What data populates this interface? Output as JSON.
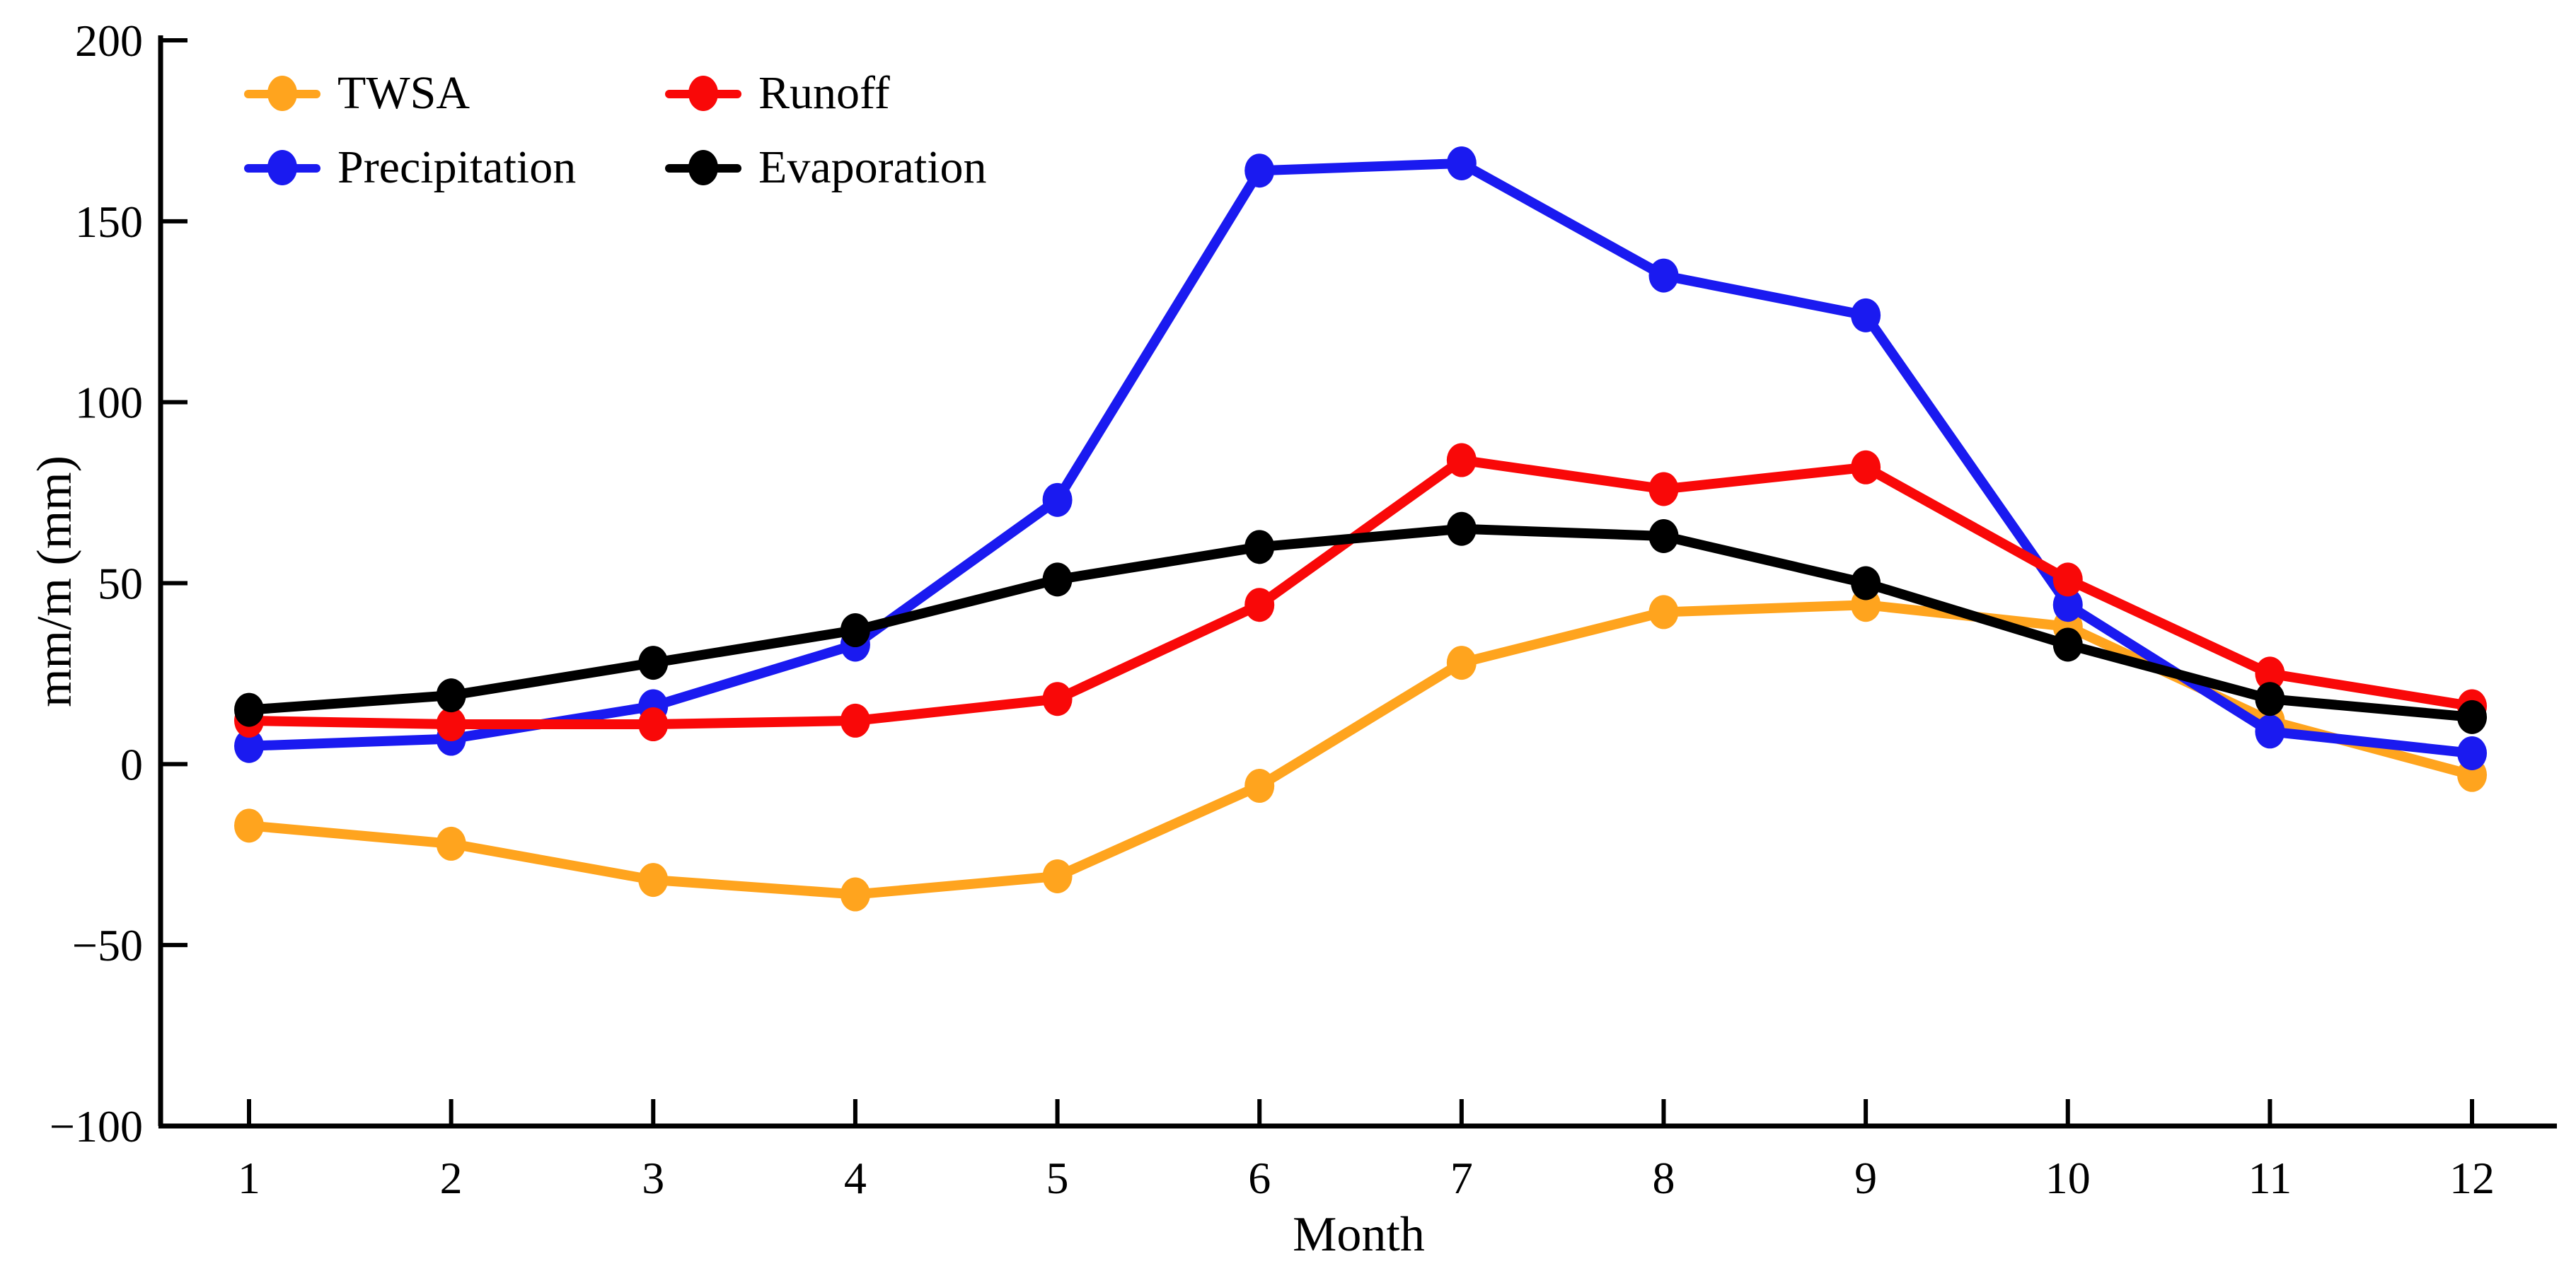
{
  "chart_data": {
    "type": "line",
    "x": [
      1,
      2,
      3,
      4,
      5,
      6,
      7,
      8,
      9,
      10,
      11,
      12
    ],
    "xlabel": "Month",
    "ylabel": "mm/m (mm)",
    "ylim": [
      -100,
      200
    ],
    "y_ticks": [
      200,
      150,
      100,
      50,
      0,
      -50,
      -100
    ],
    "grid": false,
    "legend_position": "top-left-inside",
    "series": [
      {
        "name": "TWSA",
        "color": "#FFA41E",
        "values": [
          -17,
          -22,
          -32,
          -36,
          -31,
          -6,
          28,
          42,
          44,
          38,
          12,
          -3
        ]
      },
      {
        "name": "Precipitation",
        "color": "#1A1AF0",
        "values": [
          5,
          7,
          16,
          33,
          73,
          164,
          166,
          135,
          124,
          44,
          9,
          3
        ]
      },
      {
        "name": "Runoff",
        "color": "#F90808",
        "values": [
          12,
          11,
          11,
          12,
          18,
          44,
          84,
          76,
          82,
          51,
          25,
          16
        ]
      },
      {
        "name": "Evaporation",
        "color": "#000000",
        "values": [
          15,
          19,
          28,
          37,
          51,
          60,
          65,
          63,
          50,
          33,
          18,
          13
        ]
      }
    ]
  },
  "legend": {
    "items": [
      {
        "label": "TWSA",
        "series_index": 0
      },
      {
        "label": "Runoff",
        "series_index": 2
      },
      {
        "label": "Precipitation",
        "series_index": 1
      },
      {
        "label": "Evaporation",
        "series_index": 3
      }
    ]
  }
}
